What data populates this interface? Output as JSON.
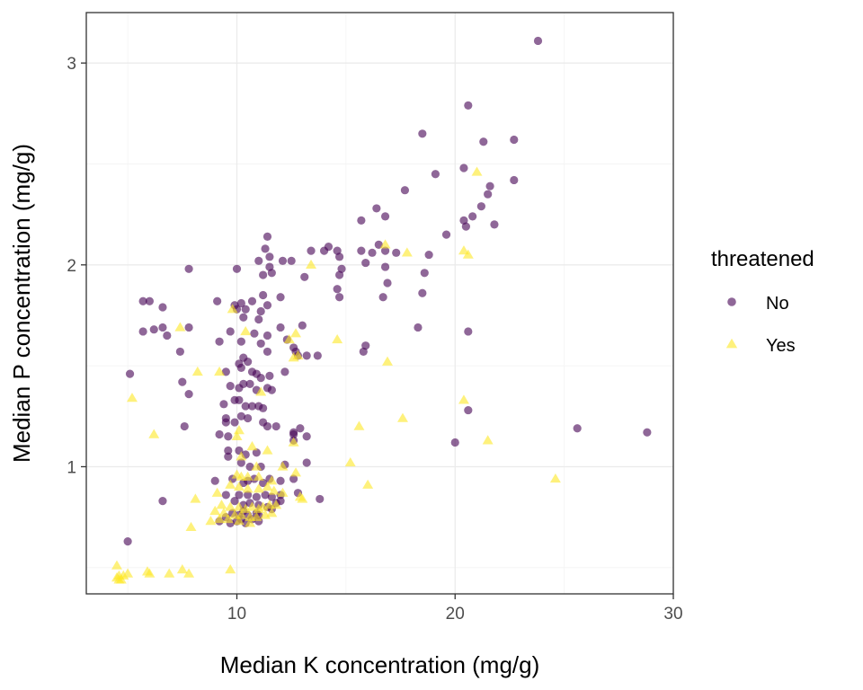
{
  "chart_data": {
    "type": "scatter",
    "xlabel": "Median K concentration (mg/g)",
    "ylabel": "Median P concentration (mg/g)",
    "xlim": [
      3.1,
      30.0
    ],
    "ylim": [
      0.37,
      3.25
    ],
    "x_ticks": [
      10,
      20,
      30
    ],
    "y_ticks": [
      1,
      2,
      3
    ],
    "x_tick_labels": [
      "10",
      "20",
      "30"
    ],
    "y_tick_labels": [
      "1",
      "2",
      "3"
    ],
    "grid": true,
    "legend": {
      "title": "threatened",
      "position": "right"
    },
    "series": [
      {
        "name": "No",
        "marker": "circle",
        "color": "#440154",
        "points": [
          [
            23.8,
            3.11
          ],
          [
            20.6,
            2.79
          ],
          [
            18.5,
            2.65
          ],
          [
            22.7,
            2.62
          ],
          [
            21.3,
            2.61
          ],
          [
            20.4,
            2.48
          ],
          [
            19.1,
            2.45
          ],
          [
            22.7,
            2.42
          ],
          [
            21.6,
            2.39
          ],
          [
            21.5,
            2.35
          ],
          [
            17.7,
            2.37
          ],
          [
            21.2,
            2.29
          ],
          [
            16.4,
            2.28
          ],
          [
            20.8,
            2.24
          ],
          [
            20.4,
            2.22
          ],
          [
            15.7,
            2.22
          ],
          [
            16.8,
            2.24
          ],
          [
            21.8,
            2.2
          ],
          [
            20.5,
            2.19
          ],
          [
            19.6,
            2.15
          ],
          [
            11.4,
            2.14
          ],
          [
            11.3,
            2.08
          ],
          [
            11.0,
            2.02
          ],
          [
            11.5,
            2.04
          ],
          [
            11.6,
            1.96
          ],
          [
            11.2,
            1.95
          ],
          [
            11.5,
            1.99
          ],
          [
            12.1,
            2.02
          ],
          [
            12.5,
            2.02
          ],
          [
            13.4,
            2.07
          ],
          [
            14.0,
            2.07
          ],
          [
            14.2,
            2.09
          ],
          [
            14.6,
            2.07
          ],
          [
            14.7,
            2.04
          ],
          [
            14.8,
            1.98
          ],
          [
            14.7,
            1.95
          ],
          [
            15.7,
            2.07
          ],
          [
            16.5,
            2.1
          ],
          [
            16.8,
            2.07
          ],
          [
            16.2,
            2.06
          ],
          [
            15.9,
            2.01
          ],
          [
            17.3,
            2.06
          ],
          [
            18.8,
            2.05
          ],
          [
            16.8,
            1.99
          ],
          [
            18.6,
            1.96
          ],
          [
            16.9,
            1.91
          ],
          [
            18.5,
            1.86
          ],
          [
            16.7,
            1.84
          ],
          [
            14.6,
            1.88
          ],
          [
            14.7,
            1.84
          ],
          [
            13.1,
            1.94
          ],
          [
            12.0,
            1.84
          ],
          [
            11.2,
            1.85
          ],
          [
            11.4,
            1.8
          ],
          [
            11.1,
            1.77
          ],
          [
            10.7,
            1.82
          ],
          [
            10.2,
            1.81
          ],
          [
            10.0,
            1.78
          ],
          [
            9.9,
            1.8
          ],
          [
            10.4,
            1.78
          ],
          [
            10.3,
            1.74
          ],
          [
            11.0,
            1.73
          ],
          [
            10.0,
            1.98
          ],
          [
            7.8,
            1.98
          ],
          [
            9.1,
            1.82
          ],
          [
            5.7,
            1.82
          ],
          [
            6.0,
            1.82
          ],
          [
            6.6,
            1.79
          ],
          [
            9.7,
            1.67
          ],
          [
            10.2,
            1.62
          ],
          [
            10.8,
            1.66
          ],
          [
            9.2,
            1.62
          ],
          [
            6.2,
            1.68
          ],
          [
            5.7,
            1.67
          ],
          [
            6.8,
            1.65
          ],
          [
            6.6,
            1.69
          ],
          [
            7.8,
            1.69
          ],
          [
            7.4,
            1.57
          ],
          [
            12.0,
            1.69
          ],
          [
            12.3,
            1.63
          ],
          [
            11.4,
            1.65
          ],
          [
            11.1,
            1.61
          ],
          [
            11.4,
            1.57
          ],
          [
            12.6,
            1.59
          ],
          [
            13.0,
            1.7
          ],
          [
            12.7,
            1.57
          ],
          [
            12.8,
            1.55
          ],
          [
            13.2,
            1.55
          ],
          [
            13.7,
            1.55
          ],
          [
            15.9,
            1.6
          ],
          [
            15.8,
            1.57
          ],
          [
            18.3,
            1.69
          ],
          [
            20.6,
            1.67
          ],
          [
            10.3,
            1.54
          ],
          [
            10.1,
            1.51
          ],
          [
            10.5,
            1.52
          ],
          [
            10.2,
            1.49
          ],
          [
            10.7,
            1.47
          ],
          [
            10.9,
            1.46
          ],
          [
            11.1,
            1.44
          ],
          [
            11.5,
            1.45
          ],
          [
            12.2,
            1.47
          ],
          [
            11.4,
            1.39
          ],
          [
            11.6,
            1.38
          ],
          [
            9.5,
            1.47
          ],
          [
            9.7,
            1.4
          ],
          [
            10.1,
            1.39
          ],
          [
            10.3,
            1.41
          ],
          [
            10.6,
            1.41
          ],
          [
            10.9,
            1.38
          ],
          [
            9.9,
            1.33
          ],
          [
            10.1,
            1.33
          ],
          [
            10.4,
            1.3
          ],
          [
            10.7,
            1.3
          ],
          [
            11.0,
            1.3
          ],
          [
            11.2,
            1.29
          ],
          [
            9.4,
            1.31
          ],
          [
            9.5,
            1.24
          ],
          [
            9.5,
            1.22
          ],
          [
            9.9,
            1.22
          ],
          [
            10.2,
            1.25
          ],
          [
            10.5,
            1.24
          ],
          [
            11.2,
            1.22
          ],
          [
            11.4,
            1.2
          ],
          [
            11.8,
            1.2
          ],
          [
            12.6,
            1.17
          ],
          [
            12.6,
            1.16
          ],
          [
            12.9,
            1.19
          ],
          [
            13.2,
            1.15
          ],
          [
            12.6,
            1.13
          ],
          [
            9.2,
            1.16
          ],
          [
            9.6,
            1.15
          ],
          [
            9.6,
            1.08
          ],
          [
            9.6,
            1.05
          ],
          [
            10.1,
            1.08
          ],
          [
            10.4,
            1.06
          ],
          [
            10.9,
            1.07
          ],
          [
            10.2,
            1.02
          ],
          [
            10.6,
            1.0
          ],
          [
            11.1,
            1.0
          ],
          [
            12.2,
            1.01
          ],
          [
            13.2,
            1.02
          ],
          [
            9.0,
            0.93
          ],
          [
            9.8,
            0.94
          ],
          [
            10.3,
            0.92
          ],
          [
            10.5,
            0.93
          ],
          [
            10.8,
            0.94
          ],
          [
            11.2,
            0.92
          ],
          [
            11.5,
            0.94
          ],
          [
            12.0,
            0.93
          ],
          [
            12.6,
            0.94
          ],
          [
            9.5,
            0.86
          ],
          [
            10.1,
            0.86
          ],
          [
            10.5,
            0.86
          ],
          [
            10.9,
            0.85
          ],
          [
            11.3,
            0.86
          ],
          [
            11.6,
            0.85
          ],
          [
            12.0,
            0.86
          ],
          [
            12.8,
            0.87
          ],
          [
            13.8,
            0.84
          ],
          [
            9.9,
            0.83
          ],
          [
            10.3,
            0.81
          ],
          [
            10.6,
            0.82
          ],
          [
            11.0,
            0.81
          ],
          [
            11.4,
            0.8
          ],
          [
            11.8,
            0.82
          ],
          [
            9.8,
            0.77
          ],
          [
            10.1,
            0.76
          ],
          [
            10.3,
            0.78
          ],
          [
            10.5,
            0.76
          ],
          [
            10.9,
            0.77
          ],
          [
            11.0,
            0.76
          ],
          [
            11.6,
            0.79
          ],
          [
            12.0,
            0.83
          ],
          [
            9.2,
            0.73
          ],
          [
            9.5,
            0.75
          ],
          [
            9.7,
            0.72
          ],
          [
            10.0,
            0.73
          ],
          [
            10.2,
            0.74
          ],
          [
            10.4,
            0.72
          ],
          [
            10.7,
            0.74
          ],
          [
            11.0,
            0.73
          ],
          [
            6.6,
            0.83
          ],
          [
            5.0,
            0.63
          ],
          [
            5.1,
            1.46
          ],
          [
            7.6,
            1.2
          ],
          [
            7.8,
            1.36
          ],
          [
            7.5,
            1.42
          ],
          [
            25.6,
            1.19
          ],
          [
            28.8,
            1.17
          ],
          [
            20.6,
            1.28
          ],
          [
            20.0,
            1.12
          ]
        ]
      },
      {
        "name": "Yes",
        "marker": "triangle",
        "color": "#fde725",
        "points": [
          [
            21.0,
            2.46
          ],
          [
            20.4,
            2.07
          ],
          [
            20.6,
            2.05
          ],
          [
            17.8,
            2.06
          ],
          [
            16.8,
            2.1
          ],
          [
            13.4,
            2.0
          ],
          [
            14.6,
            1.63
          ],
          [
            12.7,
            1.66
          ],
          [
            12.4,
            1.63
          ],
          [
            12.8,
            1.55
          ],
          [
            12.6,
            1.54
          ],
          [
            16.9,
            1.52
          ],
          [
            9.8,
            1.78
          ],
          [
            7.4,
            1.69
          ],
          [
            10.4,
            1.67
          ],
          [
            8.2,
            1.47
          ],
          [
            9.2,
            1.47
          ],
          [
            11.1,
            1.37
          ],
          [
            5.2,
            1.34
          ],
          [
            20.4,
            1.33
          ],
          [
            17.6,
            1.24
          ],
          [
            15.6,
            1.2
          ],
          [
            21.5,
            1.13
          ],
          [
            6.2,
            1.16
          ],
          [
            10.0,
            1.15
          ],
          [
            10.1,
            1.18
          ],
          [
            12.6,
            1.12
          ],
          [
            10.7,
            1.1
          ],
          [
            11.4,
            1.08
          ],
          [
            10.2,
            1.05
          ],
          [
            15.2,
            1.02
          ],
          [
            10.9,
            1.0
          ],
          [
            12.1,
            1.0
          ],
          [
            12.7,
            0.97
          ],
          [
            10.0,
            0.96
          ],
          [
            10.2,
            0.95
          ],
          [
            10.5,
            0.95
          ],
          [
            11.0,
            0.95
          ],
          [
            11.6,
            0.93
          ],
          [
            24.6,
            0.94
          ],
          [
            16.0,
            0.91
          ],
          [
            9.7,
            0.91
          ],
          [
            10.1,
            0.9
          ],
          [
            10.5,
            0.89
          ],
          [
            11.0,
            0.89
          ],
          [
            11.4,
            0.9
          ],
          [
            11.7,
            0.88
          ],
          [
            12.1,
            0.87
          ],
          [
            9.1,
            0.87
          ],
          [
            8.1,
            0.84
          ],
          [
            13.0,
            0.84
          ],
          [
            12.9,
            0.85
          ],
          [
            9.3,
            0.81
          ],
          [
            9.7,
            0.8
          ],
          [
            10.1,
            0.8
          ],
          [
            10.4,
            0.79
          ],
          [
            10.7,
            0.8
          ],
          [
            11.0,
            0.79
          ],
          [
            11.2,
            0.8
          ],
          [
            11.5,
            0.81
          ],
          [
            11.8,
            0.81
          ],
          [
            9.0,
            0.78
          ],
          [
            9.4,
            0.77
          ],
          [
            9.9,
            0.76
          ],
          [
            10.2,
            0.76
          ],
          [
            10.6,
            0.75
          ],
          [
            10.9,
            0.75
          ],
          [
            11.3,
            0.76
          ],
          [
            11.6,
            0.77
          ],
          [
            8.8,
            0.73
          ],
          [
            9.2,
            0.74
          ],
          [
            9.6,
            0.74
          ],
          [
            10.1,
            0.73
          ],
          [
            10.6,
            0.72
          ],
          [
            7.9,
            0.7
          ],
          [
            4.5,
            0.51
          ],
          [
            4.6,
            0.46
          ],
          [
            4.8,
            0.46
          ],
          [
            5.0,
            0.47
          ],
          [
            5.9,
            0.48
          ],
          [
            6.0,
            0.47
          ],
          [
            6.9,
            0.47
          ],
          [
            7.5,
            0.49
          ],
          [
            7.8,
            0.47
          ],
          [
            9.7,
            0.49
          ],
          [
            4.5,
            0.45
          ],
          [
            4.7,
            0.44
          ],
          [
            4.6,
            0.44
          ]
        ]
      }
    ]
  }
}
